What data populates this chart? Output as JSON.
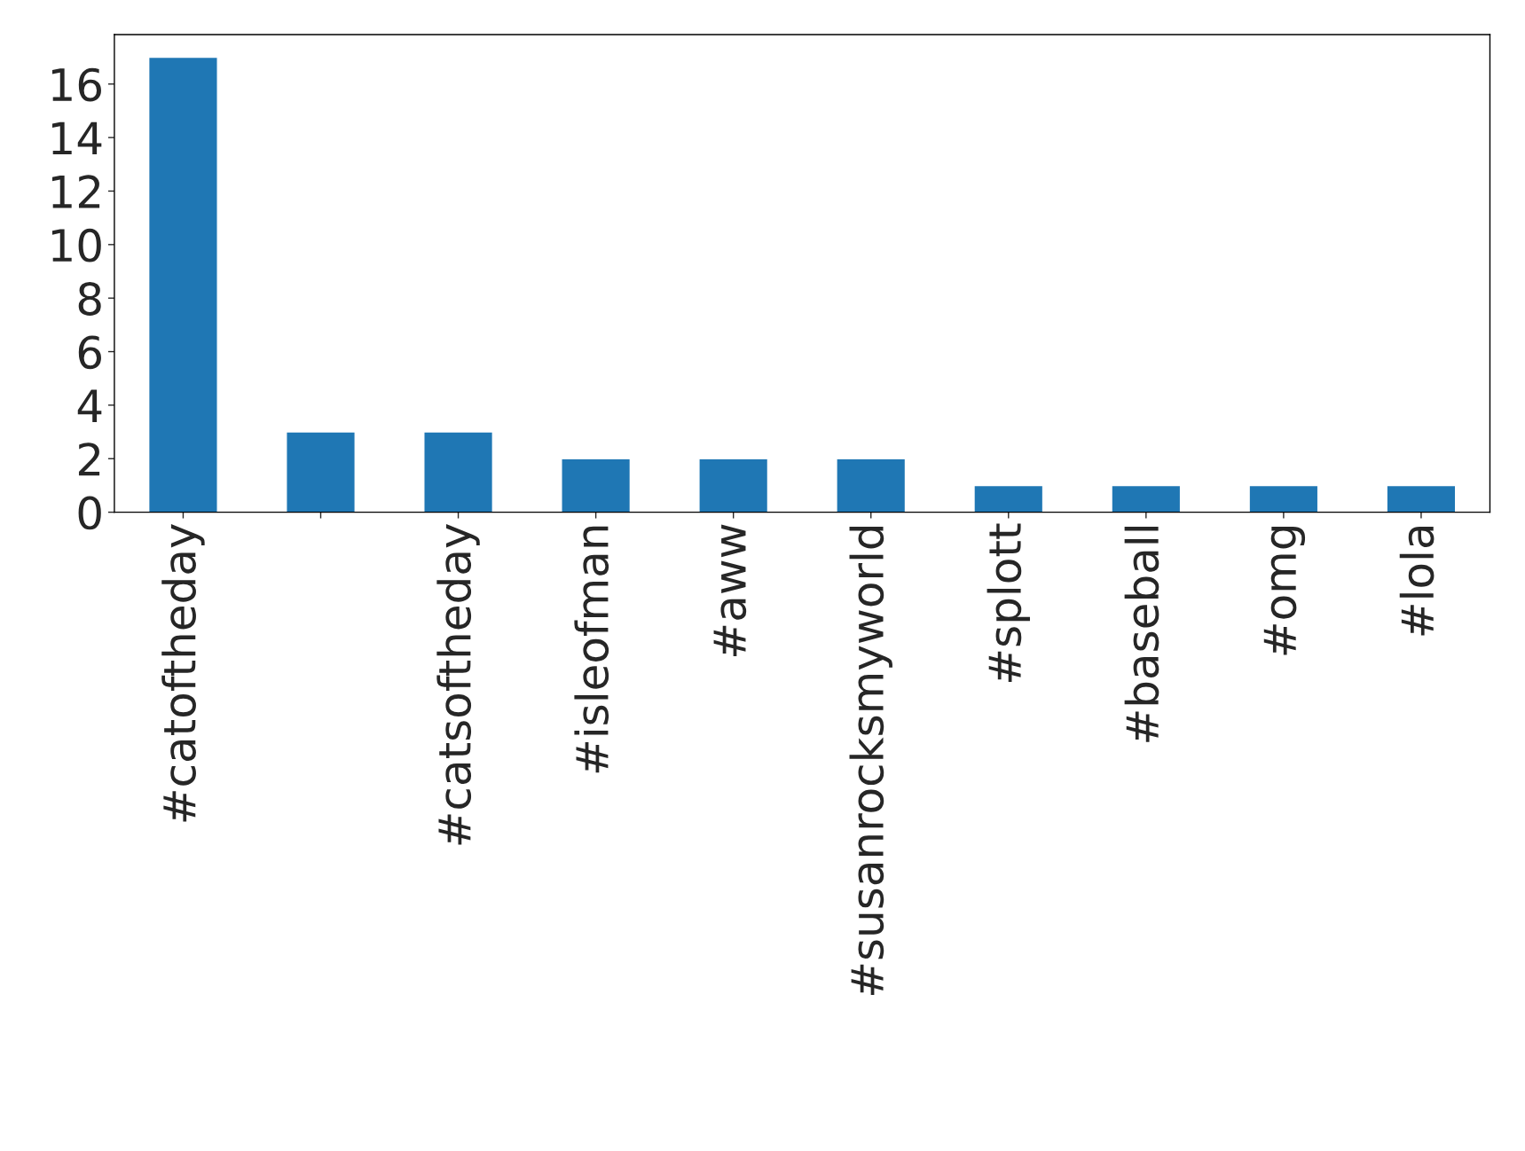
{
  "chart_data": {
    "type": "bar",
    "categories": [
      "#catoftheday",
      null,
      "#catsoftheday",
      "#isleofman",
      "#aww",
      "#susanrocksmyworld",
      "#splott",
      "#baseball",
      "#omg",
      "#lola"
    ],
    "values": [
      17,
      3,
      3,
      2,
      2,
      2,
      1,
      1,
      1,
      1
    ],
    "color": "#1f77b4",
    "ylim": [
      0,
      17.85
    ],
    "yticks": [
      0,
      2,
      4,
      6,
      8,
      10,
      12,
      14,
      16
    ],
    "grid": false,
    "legend": false
  }
}
